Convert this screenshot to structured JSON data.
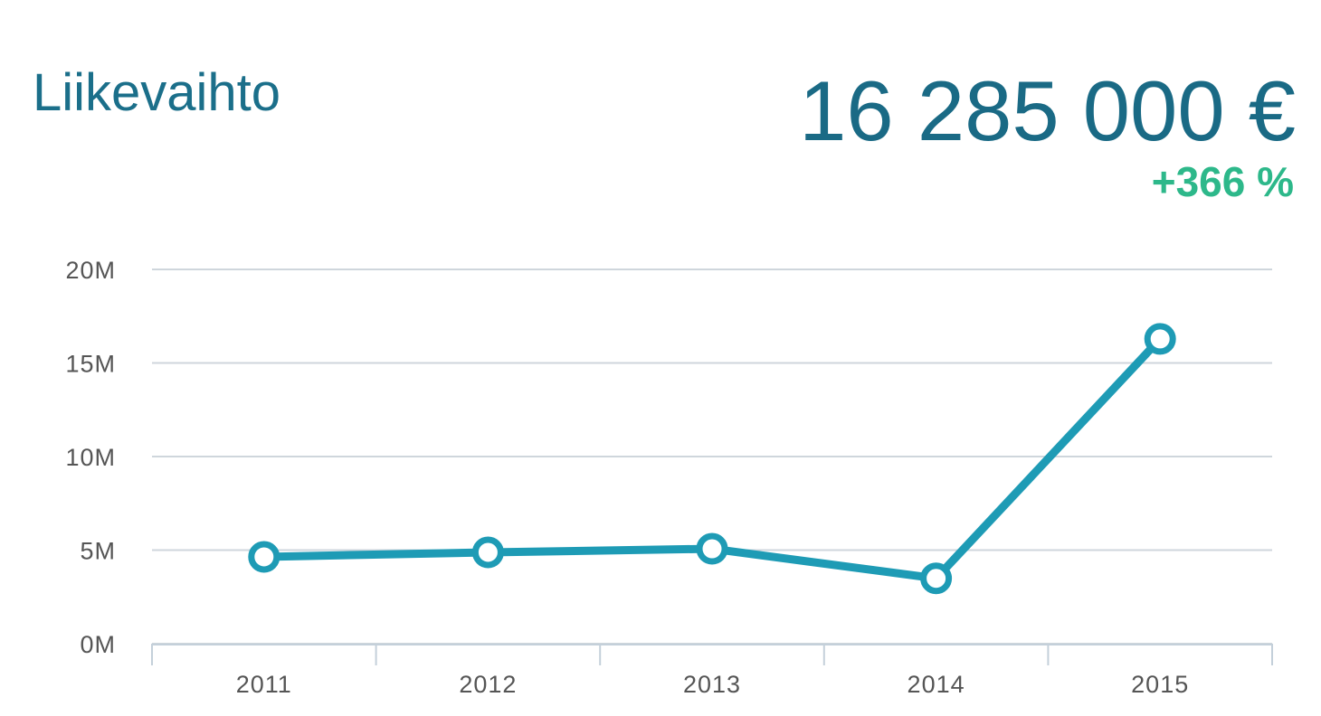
{
  "chart_data": {
    "type": "line",
    "title": "Liikevaihto",
    "headline_value": "16 285 000 €",
    "headline_change": "+366 %",
    "categories": [
      "2011",
      "2012",
      "2013",
      "2014",
      "2015"
    ],
    "series": [
      {
        "name": "Liikevaihto",
        "color": "#1e9bb5",
        "values": [
          4640000,
          4880000,
          5070000,
          3490000,
          16285000
        ]
      }
    ],
    "ylim": [
      0,
      20000000
    ],
    "yticks": [
      {
        "value": 0,
        "label": "0M"
      },
      {
        "value": 5000000,
        "label": "5M"
      },
      {
        "value": 10000000,
        "label": "10M"
      },
      {
        "value": 15000000,
        "label": "15M"
      },
      {
        "value": 20000000,
        "label": "20M"
      }
    ],
    "grid": true
  }
}
